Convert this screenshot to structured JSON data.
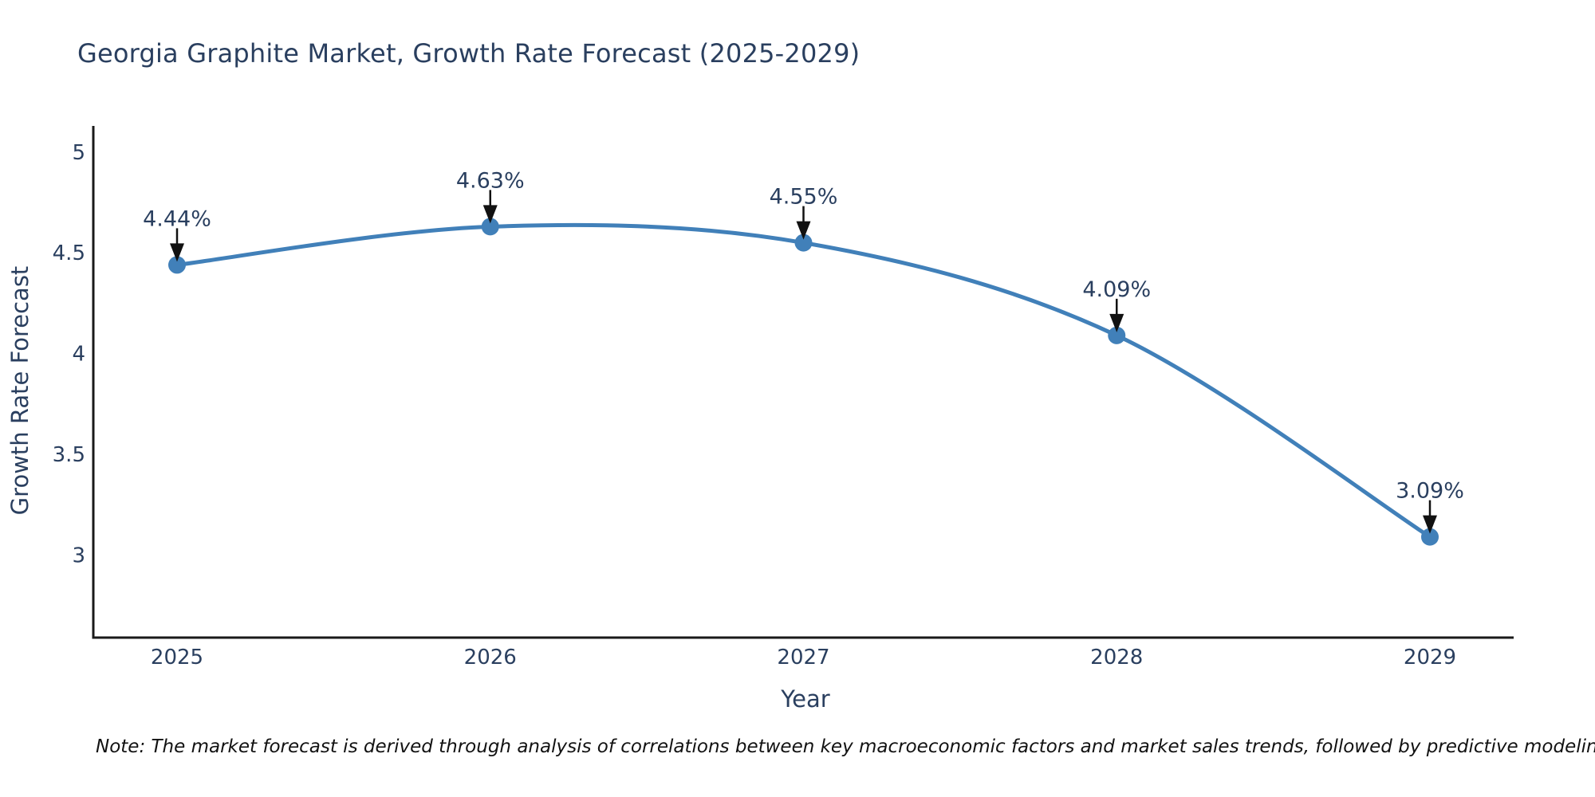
{
  "chart_data": {
    "type": "line",
    "title": "Georgia Graphite Market, Growth Rate Forecast (2025-2029)",
    "xlabel": "Year",
    "ylabel": "Growth Rate Forecast",
    "x": [
      2025,
      2026,
      2027,
      2028,
      2029
    ],
    "series": [
      {
        "name": "Growth Rate Forecast",
        "values": [
          4.44,
          4.63,
          4.55,
          4.09,
          3.09
        ]
      }
    ],
    "point_labels": [
      "4.44%",
      "4.63%",
      "4.55%",
      "4.09%",
      "3.09%"
    ],
    "yticks": [
      3,
      3.5,
      4,
      4.5,
      5
    ],
    "ylim": [
      2.59,
      5.13
    ],
    "grid": false,
    "legend": "none",
    "smooth": true,
    "annotation_style": "value label with downward black arrow to each point",
    "line_color": "#4180b9",
    "marker_color": "#4180b9",
    "axis_color": "#1a1a1a",
    "text_color": "#2a3f5f",
    "arrow_color": "#111111"
  },
  "footnote": "Note: The market forecast is derived through analysis of correlations between key macroeconomic factors and market sales trends, followed by predictive modeling to project future sales"
}
